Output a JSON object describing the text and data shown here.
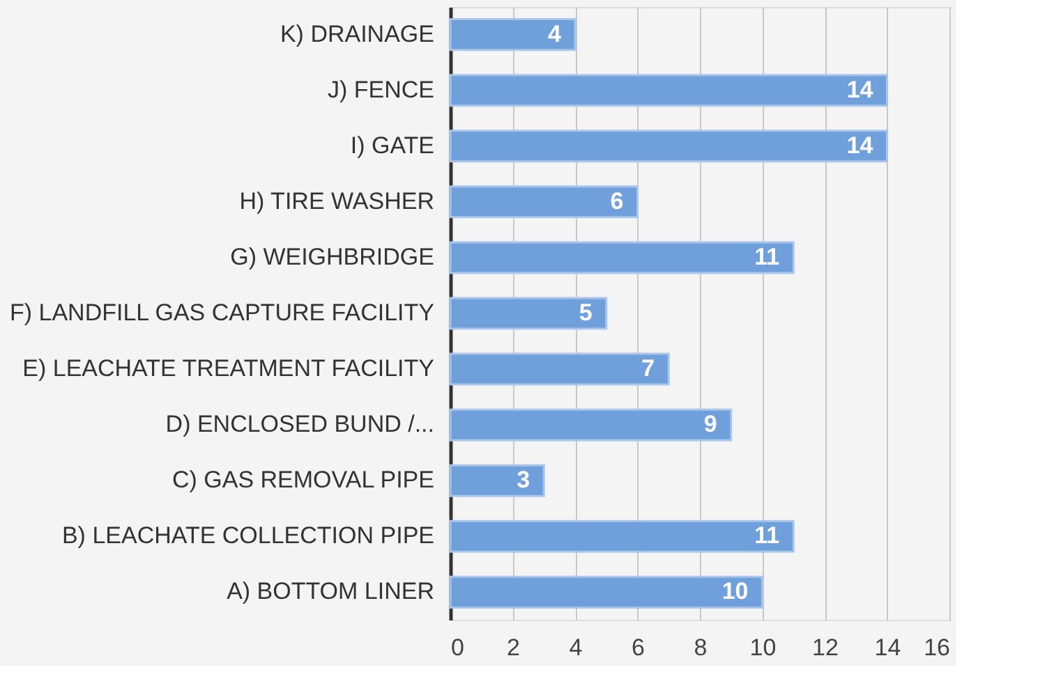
{
  "chart_data": {
    "type": "bar",
    "orientation": "horizontal",
    "categories": [
      "K) DRAINAGE",
      "J) FENCE",
      "I) GATE",
      "H) TIRE WASHER",
      "G) WEIGHBRIDGE",
      "F) LANDFILL GAS CAPTURE FACILITY",
      "E) LEACHATE TREATMENT FACILITY",
      "D) ENCLOSED BUND /...",
      "C) GAS REMOVAL PIPE",
      "B) LEACHATE COLLECTION PIPE",
      "A) BOTTOM LINER"
    ],
    "values": [
      4,
      14,
      14,
      6,
      11,
      5,
      7,
      9,
      3,
      11,
      10
    ],
    "color": "#6fa0dc",
    "xlim": [
      0,
      16
    ],
    "xticks": [
      0,
      2,
      4,
      6,
      8,
      10,
      12,
      14,
      16
    ],
    "grid": "x",
    "data_labels": true
  }
}
